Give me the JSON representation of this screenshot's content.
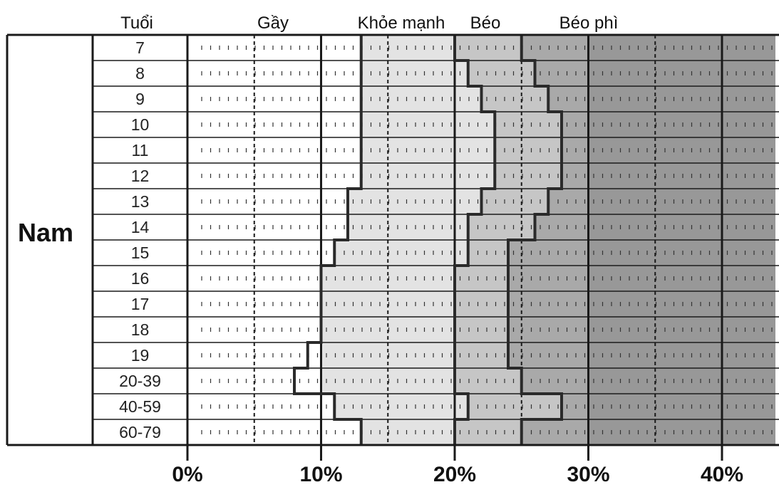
{
  "chart_data": {
    "type": "area",
    "orientation": "horizontal-stacked-bands",
    "group_label": "Nam",
    "row_header": "Tuổi",
    "categories": [
      "7",
      "8",
      "9",
      "10",
      "11",
      "12",
      "13",
      "14",
      "15",
      "16",
      "17",
      "18",
      "19",
      "20-39",
      "40-59",
      "60-79"
    ],
    "bands": [
      {
        "name": "Gầy",
        "fill": "#ffffff"
      },
      {
        "name": "Khỏe mạnh",
        "fill": "#e3e3e3"
      },
      {
        "name": "Béo",
        "fill": "#c6c6c6"
      },
      {
        "name": "Béo phì",
        "fill": "#a9a9a9"
      }
    ],
    "boundaries": [
      {
        "name": "Gầy / Khỏe mạnh",
        "values": [
          13,
          13,
          13,
          13,
          13,
          13,
          12,
          12,
          11,
          10,
          10,
          10,
          9,
          8,
          11,
          13
        ]
      },
      {
        "name": "Khỏe mạnh / Béo",
        "values": [
          20,
          21,
          22,
          23,
          23,
          23,
          22,
          21,
          21,
          20,
          20,
          20,
          20,
          20,
          21,
          20
        ]
      },
      {
        "name": "Béo / Béo phì",
        "values": [
          25,
          26,
          27,
          28,
          28,
          28,
          27,
          26,
          24,
          24,
          24,
          24,
          24,
          25,
          28,
          25
        ]
      }
    ],
    "xlim": [
      0,
      44
    ],
    "xticks": [
      "0%",
      "10%",
      "20%",
      "30%",
      "40%"
    ],
    "xtick_values": [
      0,
      10,
      20,
      30,
      40
    ],
    "dashed_gridlines": [
      5,
      15,
      25,
      35
    ],
    "solid_gridlines": [
      0,
      10,
      20,
      30,
      40
    ],
    "underweight_text_boundary": 10,
    "shade_regions": [
      {
        "from": 30,
        "to": 44,
        "fill": "#989898"
      }
    ],
    "colors": {
      "frame": "#1a1a1a",
      "band_line": "#2a2a2a",
      "dots": "#333333"
    }
  }
}
